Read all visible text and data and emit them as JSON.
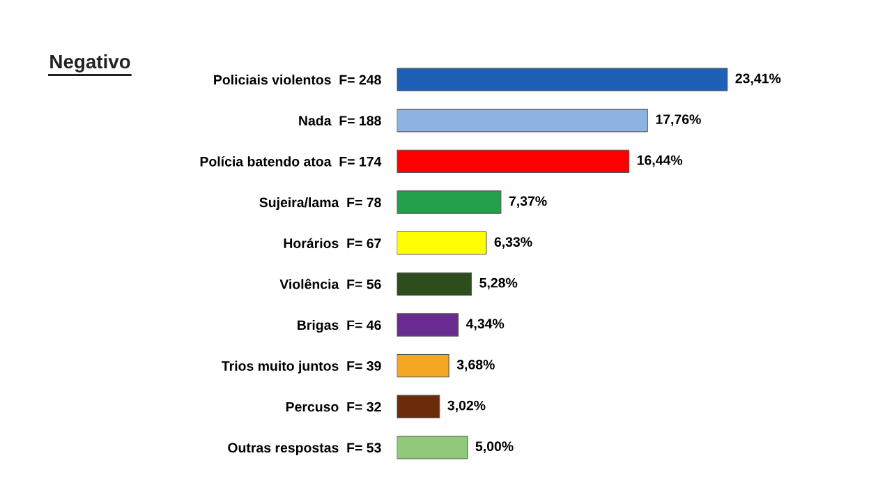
{
  "chart_data": {
    "type": "bar",
    "orientation": "horizontal",
    "title": "Negativo",
    "categories": [
      "Policiais violentos  F= 248",
      "Nada  F= 188",
      "Polícia batendo atoa  F= 174",
      "Sujeira/lama  F= 78",
      "Horários  F= 67",
      "Violência  F= 56",
      "Brigas  F= 46",
      "Trios muito juntos  F= 39",
      "Percuso  F= 32",
      "Outras respostas  F= 53"
    ],
    "values": [
      23.41,
      17.76,
      16.44,
      7.37,
      6.33,
      5.28,
      4.34,
      3.68,
      3.02,
      5.0
    ],
    "colors": [
      "#1f5fb5",
      "#8db3e2",
      "#ff0000",
      "#22a04b",
      "#ffff00",
      "#2d4d1e",
      "#6a2c91",
      "#f5a623",
      "#6b2c0b",
      "#8fc97a"
    ],
    "value_labels": [
      "23,41%",
      "17,76%",
      "16,44%",
      "7,37%",
      "6,33%",
      "5,28%",
      "4,34%",
      "3,68%",
      "3,02%",
      "5,00%"
    ]
  }
}
